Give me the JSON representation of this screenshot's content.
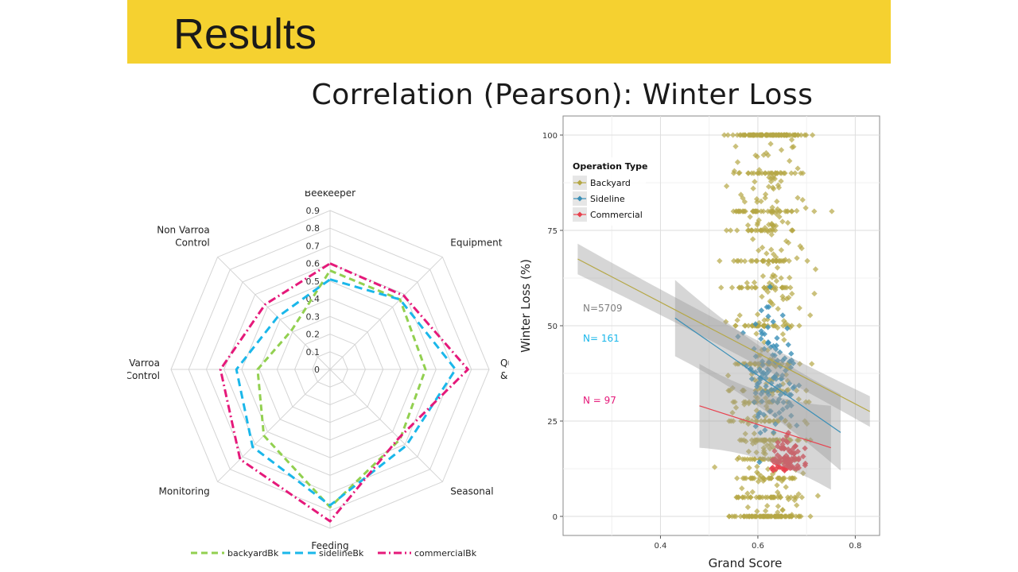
{
  "slide": {
    "title": "Results",
    "subtitle": "Correlation (Pearson): Winter Loss",
    "header_color": "#f5d130"
  },
  "chart_data": [
    {
      "type": "radar",
      "axes": [
        "Beekeeper",
        "Equipment",
        "Queen & New Col.",
        "Seasonal",
        "Feeding",
        "Monitoring",
        "Varroa Control",
        "Non Varroa Control"
      ],
      "axis_label_lines": [
        [
          "Beekeeper"
        ],
        [
          "Equipment"
        ],
        [
          "Queen",
          "& New Col."
        ],
        [
          "Seasonal"
        ],
        [
          "Feeding"
        ],
        [
          "Monitoring"
        ],
        [
          "Varroa",
          "Control"
        ],
        [
          "Non Varroa",
          "Control"
        ]
      ],
      "rlim": [
        0,
        0.9
      ],
      "rticks": [
        "0",
        "0.1",
        "0.2",
        "0.3",
        "0.4",
        "0.5",
        "0.6",
        "0.7",
        "0.8",
        "0.9"
      ],
      "grid": true,
      "legend_position": "bottom",
      "series": [
        {
          "name": "backyardBk",
          "color": "#92d050",
          "dash": "8,5",
          "values": [
            0.56,
            0.56,
            0.54,
            0.56,
            0.78,
            0.53,
            0.41,
            0.31
          ]
        },
        {
          "name": "sidelineBk",
          "color": "#1ab7ea",
          "dash": "10,6",
          "values": [
            0.51,
            0.56,
            0.71,
            0.61,
            0.77,
            0.62,
            0.53,
            0.42
          ]
        },
        {
          "name": "commercialBk",
          "color": "#e5197a",
          "dash": "10,4,2,4",
          "values": [
            0.6,
            0.59,
            0.78,
            0.55,
            0.86,
            0.72,
            0.62,
            0.52
          ]
        }
      ]
    },
    {
      "type": "scatter",
      "xlabel": "Grand Score",
      "ylabel": "Winter Loss (%)",
      "xlim": [
        0.2,
        0.85
      ],
      "ylim": [
        -5,
        105
      ],
      "xticks": [
        0.4,
        0.6,
        0.8
      ],
      "xtick_labels": [
        "0.4",
        "0.6",
        "0.8"
      ],
      "yticks": [
        0,
        25,
        50,
        75,
        100
      ],
      "ytick_labels": [
        "0",
        "25",
        "50",
        "75",
        "100"
      ],
      "grid": true,
      "legend_title": "Operation Type",
      "legend_position": "top-left",
      "series": [
        {
          "name": "Backyard",
          "color": "#b5a745",
          "n_label": "N=5709",
          "n_color": "#7f7f7f",
          "fit": {
            "x": [
              0.23,
              0.83
            ],
            "y": [
              67.5,
              27.5
            ]
          }
        },
        {
          "name": "Sideline",
          "color": "#3a8fb7",
          "n_label": "N= 161",
          "n_color": "#1ab7ea",
          "fit": {
            "x": [
              0.43,
              0.77
            ],
            "y": [
              52,
              22
            ]
          }
        },
        {
          "name": "Commercial",
          "color": "#e8414e",
          "n_label": "N = 97",
          "n_color": "#e5197a",
          "fit": {
            "x": [
              0.48,
              0.75
            ],
            "y": [
              29,
              18
            ]
          }
        }
      ]
    }
  ]
}
